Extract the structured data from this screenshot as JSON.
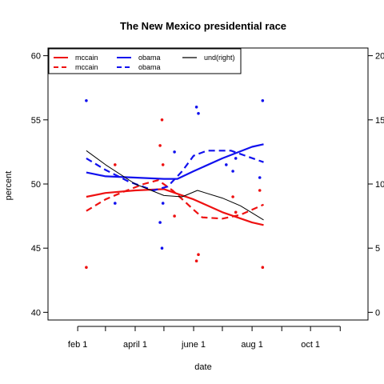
{
  "chart_data": {
    "type": "scatter",
    "title": "The New Mexico presidential race",
    "xlabel": "date",
    "ylabel": "percent",
    "ylim": [
      40,
      60
    ],
    "y2lim": [
      0,
      20
    ],
    "y_ticks": [
      40,
      45,
      50,
      55,
      60
    ],
    "y2_ticks": [
      0,
      5,
      10,
      15,
      20
    ],
    "xlim": [
      "2008-01-01",
      "2008-11-30"
    ],
    "x_ticks": [
      {
        "date": "2008-02-01",
        "label": "feb 1"
      },
      {
        "date": "2008-03-01",
        "label": ""
      },
      {
        "date": "2008-04-01",
        "label": "april 1"
      },
      {
        "date": "2008-05-01",
        "label": ""
      },
      {
        "date": "2008-06-01",
        "label": "june 1"
      },
      {
        "date": "2008-07-01",
        "label": ""
      },
      {
        "date": "2008-08-01",
        "label": "aug 1"
      },
      {
        "date": "2008-09-01",
        "label": ""
      },
      {
        "date": "2008-10-01",
        "label": "oct 1"
      },
      {
        "date": "2008-11-01",
        "label": ""
      }
    ],
    "grid": false,
    "legend_position": "top-left",
    "colors": {
      "mccain": "#ee1111",
      "obama": "#1111ee",
      "und": "#000000"
    },
    "points": {
      "mccain": [
        {
          "x": "2008-02-10",
          "y": 43.5
        },
        {
          "x": "2008-03-11",
          "y": 51.5
        },
        {
          "x": "2008-04-27",
          "y": 53
        },
        {
          "x": "2008-04-29",
          "y": 55
        },
        {
          "x": "2008-04-30",
          "y": 51.5
        },
        {
          "x": "2008-05-12",
          "y": 47.5
        },
        {
          "x": "2008-06-04",
          "y": 44
        },
        {
          "x": "2008-06-06",
          "y": 44.5
        },
        {
          "x": "2008-07-12",
          "y": 49
        },
        {
          "x": "2008-07-15",
          "y": 47.8
        },
        {
          "x": "2008-08-09",
          "y": 49.5
        },
        {
          "x": "2008-08-12",
          "y": 43.5
        }
      ],
      "obama": [
        {
          "x": "2008-02-10",
          "y": 56.5
        },
        {
          "x": "2008-03-11",
          "y": 48.5
        },
        {
          "x": "2008-04-27",
          "y": 47
        },
        {
          "x": "2008-04-29",
          "y": 45
        },
        {
          "x": "2008-04-30",
          "y": 48.5
        },
        {
          "x": "2008-05-12",
          "y": 52.5
        },
        {
          "x": "2008-06-04",
          "y": 56
        },
        {
          "x": "2008-06-06",
          "y": 55.5
        },
        {
          "x": "2008-07-05",
          "y": 51.5
        },
        {
          "x": "2008-07-12",
          "y": 51
        },
        {
          "x": "2008-07-15",
          "y": 52
        },
        {
          "x": "2008-08-09",
          "y": 50.5
        },
        {
          "x": "2008-08-12",
          "y": 56.5
        }
      ]
    },
    "series": [
      {
        "name": "mccain",
        "style": "solid",
        "axis": "left",
        "x": [
          "2008-02-10",
          "2008-03-01",
          "2008-04-01",
          "2008-05-01",
          "2008-06-01",
          "2008-07-01",
          "2008-08-01",
          "2008-08-13"
        ],
        "y": [
          49.0,
          49.3,
          49.5,
          49.6,
          48.8,
          47.8,
          47.0,
          46.8
        ]
      },
      {
        "name": "mccain",
        "style": "dashed",
        "axis": "left",
        "x": [
          "2008-02-10",
          "2008-03-01",
          "2008-03-20",
          "2008-04-10",
          "2008-04-25",
          "2008-05-10",
          "2008-06-01",
          "2008-06-10",
          "2008-07-01",
          "2008-07-20",
          "2008-08-13"
        ],
        "y": [
          47.9,
          48.8,
          49.4,
          50.0,
          50.3,
          49.5,
          48.0,
          47.4,
          47.3,
          47.6,
          48.4
        ]
      },
      {
        "name": "obama",
        "style": "solid",
        "axis": "left",
        "x": [
          "2008-02-10",
          "2008-03-01",
          "2008-04-01",
          "2008-05-01",
          "2008-05-15",
          "2008-06-01",
          "2008-07-01",
          "2008-08-01",
          "2008-08-13"
        ],
        "y": [
          50.9,
          50.6,
          50.5,
          50.4,
          50.4,
          51.0,
          52.0,
          52.9,
          53.1
        ]
      },
      {
        "name": "obama",
        "style": "dashed",
        "axis": "left",
        "x": [
          "2008-02-10",
          "2008-03-01",
          "2008-03-25",
          "2008-04-20",
          "2008-05-05",
          "2008-05-20",
          "2008-06-01",
          "2008-06-15",
          "2008-07-10",
          "2008-07-25",
          "2008-08-13"
        ],
        "y": [
          52.0,
          51.1,
          50.2,
          49.5,
          49.8,
          51.0,
          52.2,
          52.6,
          52.6,
          52.2,
          51.7
        ]
      },
      {
        "name": "und(right)",
        "style": "solid",
        "axis": "right",
        "x": [
          "2008-02-10",
          "2008-03-01",
          "2008-04-01",
          "2008-05-01",
          "2008-05-20",
          "2008-06-05",
          "2008-07-01",
          "2008-07-20",
          "2008-08-13"
        ],
        "y": [
          12.6,
          11.5,
          10.0,
          9.1,
          9.0,
          9.5,
          8.9,
          8.3,
          7.2
        ]
      }
    ]
  }
}
